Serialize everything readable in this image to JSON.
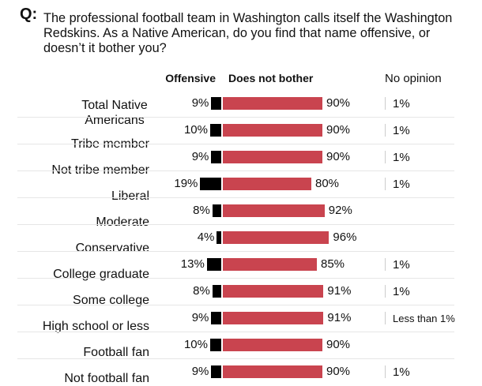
{
  "question_marker": "Q:",
  "question": "The professional football team in Washington calls itself the Washington Redskins. As a Native American, do you find that name offensive, or doesn’t it bother you?",
  "chart_data": {
    "type": "bar",
    "headers": {
      "offensive": "Offensive",
      "not_bother": "Does not bother",
      "no_opinion": "No opinion"
    },
    "colors": {
      "offensive": "#000000",
      "not_bother": "#c9444f"
    },
    "categories": [
      "Total Native Americans",
      "Tribe member",
      "Not tribe member",
      "Liberal",
      "Moderate",
      "Conservative",
      "College graduate",
      "Some college",
      "High school or less",
      "Football fan",
      "Not football fan"
    ],
    "rows": [
      {
        "offensive": 9,
        "not_bother": 90,
        "no_opinion": "1%"
      },
      {
        "offensive": 10,
        "not_bother": 90,
        "no_opinion": "1%"
      },
      {
        "offensive": 9,
        "not_bother": 90,
        "no_opinion": "1%"
      },
      {
        "offensive": 19,
        "not_bother": 80,
        "no_opinion": "1%"
      },
      {
        "offensive": 8,
        "not_bother": 92,
        "no_opinion": null
      },
      {
        "offensive": 4,
        "not_bother": 96,
        "no_opinion": null
      },
      {
        "offensive": 13,
        "not_bother": 85,
        "no_opinion": "1%"
      },
      {
        "offensive": 8,
        "not_bother": 91,
        "no_opinion": "1%"
      },
      {
        "offensive": 9,
        "not_bother": 91,
        "no_opinion": "Less than 1%"
      },
      {
        "offensive": 10,
        "not_bother": 90,
        "no_opinion": null
      },
      {
        "offensive": 9,
        "not_bother": 90,
        "no_opinion": "1%"
      }
    ]
  }
}
